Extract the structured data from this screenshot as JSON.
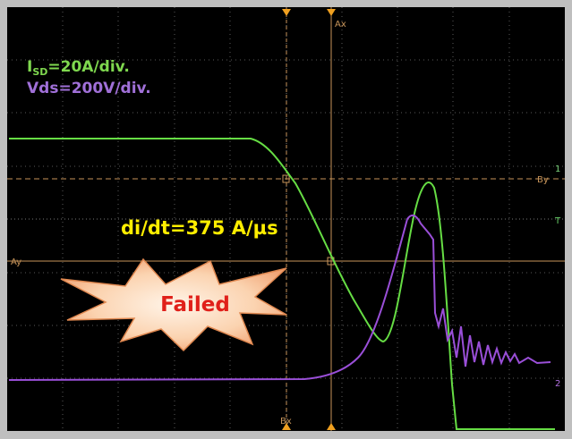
{
  "annotations": {
    "current_scale": {
      "symbol": "I",
      "subscript": "SD",
      "text": "=20A/div."
    },
    "voltage_scale": "Vds=200V/div.",
    "slope": "di/dt=375 A/µs",
    "status": "Failed"
  },
  "cursors": {
    "ax": "Ax",
    "bx": "Bx",
    "ay": "Ay",
    "by": "By",
    "trigger": "T",
    "ch1": "1",
    "ch2": "2"
  }
}
